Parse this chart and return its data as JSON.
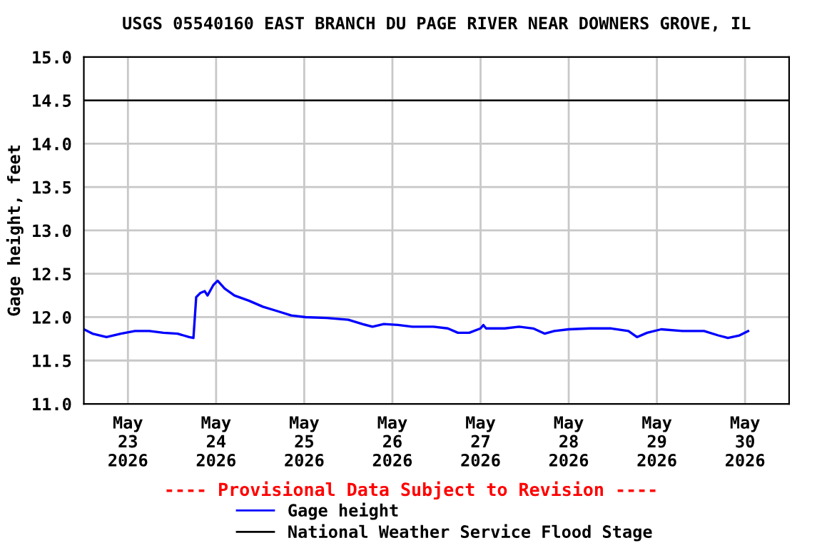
{
  "chart_data": {
    "type": "line",
    "title": "USGS 05540160 EAST BRANCH DU PAGE RIVER NEAR DOWNERS GROVE, IL",
    "ylabel": "Gage height, feet",
    "x": [
      "2026-05-22T12:00",
      "2026-05-22T14:20",
      "2026-05-22T18:10",
      "2026-05-22T22:05",
      "2026-05-23T01:55",
      "2026-05-23T05:50",
      "2026-05-23T09:40",
      "2026-05-23T13:30",
      "2026-05-23T16:40",
      "2026-05-23T17:50",
      "2026-05-23T18:35",
      "2026-05-23T19:45",
      "2026-05-23T20:55",
      "2026-05-23T21:40",
      "2026-05-23T23:15",
      "2026-05-24T00:25",
      "2026-05-24T02:20",
      "2026-05-24T05:00",
      "2026-05-24T08:55",
      "2026-05-24T12:45",
      "2026-05-24T16:40",
      "2026-05-24T20:30",
      "2026-05-25T00:25",
      "2026-05-25T06:10",
      "2026-05-25T12:00",
      "2026-05-25T15:50",
      "2026-05-25T18:35",
      "2026-05-25T21:40",
      "2026-05-26T01:30",
      "2026-05-26T05:25",
      "2026-05-26T11:10",
      "2026-05-26T15:05",
      "2026-05-26T17:50",
      "2026-05-26T20:55",
      "2026-05-27T00:00",
      "2026-05-27T00:45",
      "2026-05-27T01:30",
      "2026-05-27T06:35",
      "2026-05-27T10:30",
      "2026-05-27T14:20",
      "2026-05-27T17:25",
      "2026-05-27T20:05",
      "2026-05-28T00:00",
      "2026-05-28T05:50",
      "2026-05-28T11:35",
      "2026-05-28T16:15",
      "2026-05-28T18:35",
      "2026-05-28T21:20",
      "2026-05-29T01:10",
      "2026-05-29T07:00",
      "2026-05-29T12:50",
      "2026-05-29T16:40",
      "2026-05-29T19:20",
      "2026-05-29T22:30",
      "2026-05-30T00:50"
    ],
    "series": [
      {
        "name": "Gage height",
        "color": "#0000ff",
        "values": [
          11.86,
          11.81,
          11.77,
          11.81,
          11.84,
          11.84,
          11.82,
          11.81,
          11.77,
          11.76,
          12.23,
          12.28,
          12.3,
          12.25,
          12.37,
          12.42,
          12.33,
          12.25,
          12.19,
          12.12,
          12.07,
          12.02,
          12.0,
          11.99,
          11.97,
          11.92,
          11.89,
          11.92,
          11.91,
          11.89,
          11.89,
          11.87,
          11.82,
          11.82,
          11.87,
          11.91,
          11.87,
          11.87,
          11.89,
          11.87,
          11.81,
          11.84,
          11.86,
          11.87,
          11.87,
          11.84,
          11.77,
          11.82,
          11.86,
          11.84,
          11.84,
          11.79,
          11.76,
          11.79,
          11.84
        ]
      }
    ],
    "ref_lines": [
      {
        "axis": "y",
        "value": 14.5,
        "label": "National Weather Service Flood Stage",
        "color": "#000000"
      }
    ],
    "annotations": [
      "---- Provisional Data Subject to Revision ----"
    ],
    "xlim": [
      "2026-05-22T12:00",
      "2026-05-30T12:00"
    ],
    "xticks": [
      {
        "value": "2026-05-23",
        "label": "May\n23\n2026"
      },
      {
        "value": "2026-05-24",
        "label": "May\n24\n2026"
      },
      {
        "value": "2026-05-25",
        "label": "May\n25\n2026"
      },
      {
        "value": "2026-05-26",
        "label": "May\n26\n2026"
      },
      {
        "value": "2026-05-27",
        "label": "May\n27\n2026"
      },
      {
        "value": "2026-05-28",
        "label": "May\n28\n2026"
      },
      {
        "value": "2026-05-29",
        "label": "May\n29\n2026"
      },
      {
        "value": "2026-05-30",
        "label": "May\n30\n2026"
      }
    ],
    "ylim": [
      11.0,
      15.0
    ],
    "yticks": [
      {
        "value": 11.0,
        "label": "11.0"
      },
      {
        "value": 11.5,
        "label": "11.5"
      },
      {
        "value": 12.0,
        "label": "12.0"
      },
      {
        "value": 12.5,
        "label": "12.5"
      },
      {
        "value": 13.0,
        "label": "13.0"
      },
      {
        "value": 13.5,
        "label": "13.5"
      },
      {
        "value": 14.0,
        "label": "14.0"
      },
      {
        "value": 14.5,
        "label": "14.5"
      },
      {
        "value": 15.0,
        "label": "15.0"
      }
    ],
    "grid": true,
    "legend": "bottom",
    "marker": "none",
    "line_style": "solid"
  }
}
